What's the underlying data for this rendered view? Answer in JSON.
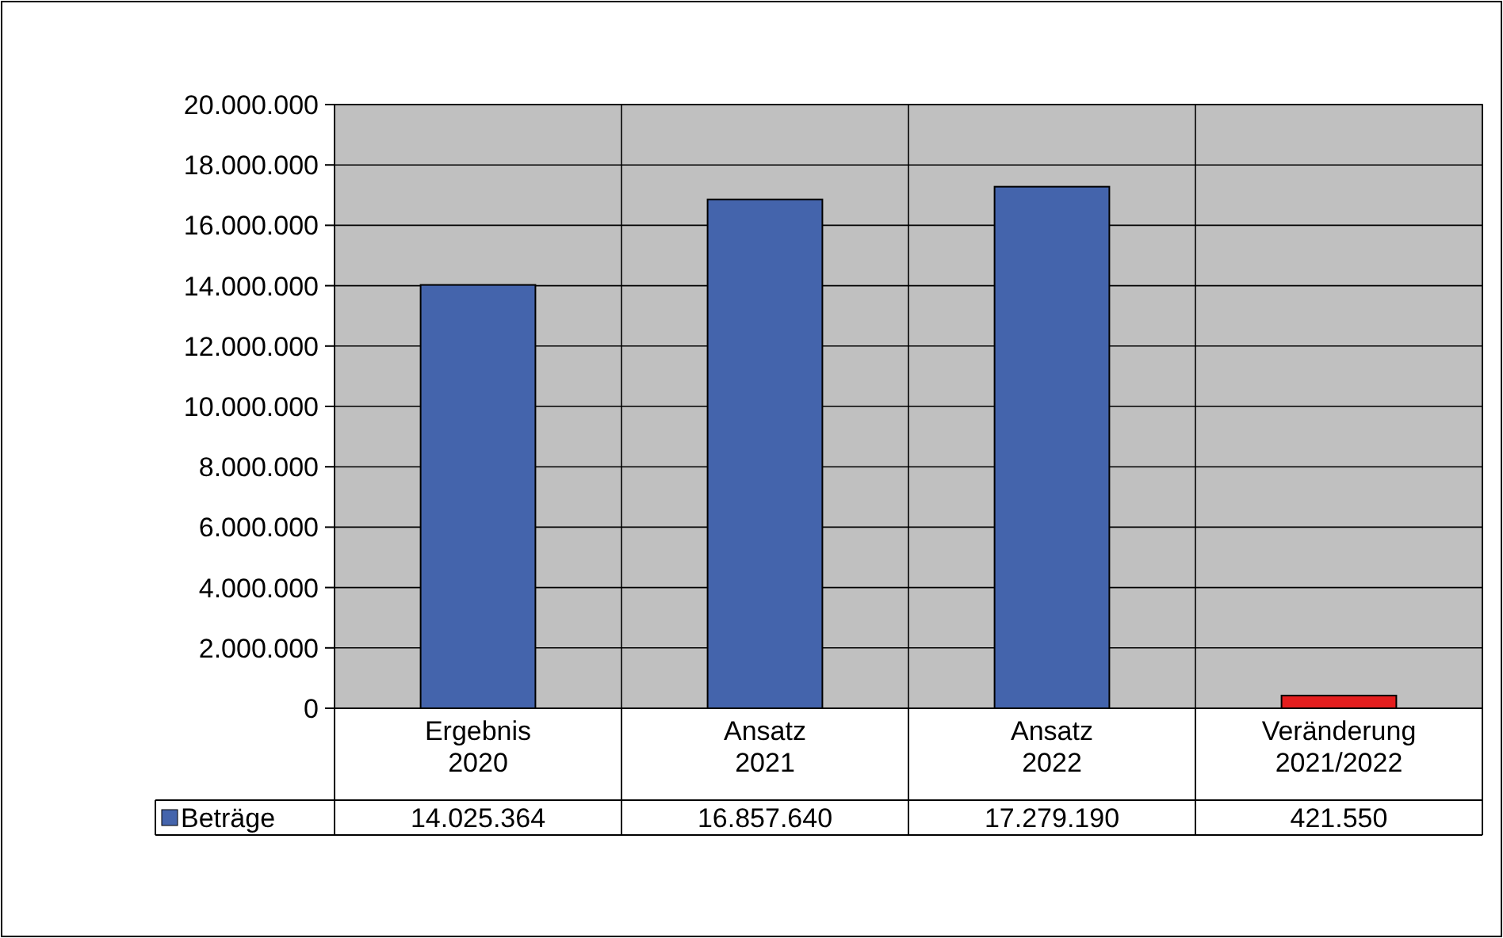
{
  "chart_data": {
    "type": "bar",
    "categories": [
      "Ergebnis\n2020",
      "Ansatz\n2021",
      "Ansatz\n2022",
      "Veränderung\n2021/2022"
    ],
    "series": [
      {
        "name": "Beträge",
        "color": "#4464ac",
        "colors": [
          "#4464ac",
          "#4464ac",
          "#4464ac",
          "#e41e1e"
        ],
        "values": [
          14025364,
          16857640,
          17279190,
          421550
        ],
        "value_labels": [
          "14.025.364",
          "16.857.640",
          "17.279.190",
          "421.550"
        ]
      }
    ],
    "ylim": [
      0,
      20000000
    ],
    "yticks": [
      {
        "value": 0,
        "label": "0"
      },
      {
        "value": 2000000,
        "label": "2.000.000"
      },
      {
        "value": 4000000,
        "label": "4.000.000"
      },
      {
        "value": 6000000,
        "label": "6.000.000"
      },
      {
        "value": 8000000,
        "label": "8.000.000"
      },
      {
        "value": 10000000,
        "label": "10.000.000"
      },
      {
        "value": 12000000,
        "label": "12.000.000"
      },
      {
        "value": 14000000,
        "label": "14.000.000"
      },
      {
        "value": 16000000,
        "label": "16.000.000"
      },
      {
        "value": 18000000,
        "label": "18.000.000"
      },
      {
        "value": 20000000,
        "label": "20.000.000"
      }
    ],
    "grid": true,
    "legend": "bottom"
  }
}
